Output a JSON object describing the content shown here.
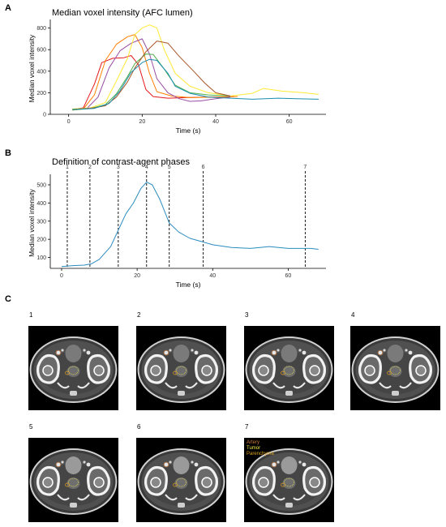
{
  "panels": {
    "a": {
      "letter": "A"
    },
    "b": {
      "letter": "B"
    },
    "c": {
      "letter": "C"
    }
  },
  "chart_data": [
    {
      "type": "line",
      "title": "Median voxel intensity (AFC lumen)",
      "xlabel": "Time (s)",
      "ylabel": "Median voxel intensity",
      "xlim": [
        -5,
        70
      ],
      "ylim": [
        0,
        850
      ],
      "xticks": [
        0,
        20,
        40,
        60
      ],
      "yticks": [
        0,
        200,
        400,
        600,
        800
      ],
      "grid": false,
      "legend": "none",
      "series": [
        {
          "color": "#e41a1c",
          "points": [
            [
              1,
              45
            ],
            [
              4,
              60
            ],
            [
              7,
              280
            ],
            [
              9,
              480
            ],
            [
              12,
              520
            ],
            [
              15,
              525
            ],
            [
              17,
              545
            ],
            [
              19,
              460
            ],
            [
              21,
              230
            ],
            [
              23,
              165
            ],
            [
              27,
              150
            ],
            [
              32,
              155
            ],
            [
              38,
              160
            ],
            [
              45,
              165
            ]
          ]
        },
        {
          "color": "#ff7f00",
          "points": [
            [
              1,
              40
            ],
            [
              4,
              50
            ],
            [
              7,
              180
            ],
            [
              10,
              500
            ],
            [
              13,
              650
            ],
            [
              16,
              720
            ],
            [
              18,
              740
            ],
            [
              20,
              620
            ],
            [
              22,
              380
            ],
            [
              24,
              210
            ],
            [
              28,
              170
            ],
            [
              33,
              155
            ],
            [
              40,
              160
            ],
            [
              46,
              165
            ]
          ]
        },
        {
          "color": "#984ea3",
          "points": [
            [
              1,
              45
            ],
            [
              5,
              55
            ],
            [
              8,
              160
            ],
            [
              11,
              430
            ],
            [
              14,
              590
            ],
            [
              17,
              660
            ],
            [
              20,
              700
            ],
            [
              22,
              560
            ],
            [
              24,
              330
            ],
            [
              27,
              200
            ],
            [
              30,
              145
            ],
            [
              33,
              120
            ],
            [
              36,
              125
            ],
            [
              40,
              145
            ],
            [
              44,
              160
            ]
          ]
        },
        {
          "color": "#ffea33",
          "points": [
            [
              1,
              50
            ],
            [
              6,
              60
            ],
            [
              10,
              110
            ],
            [
              13,
              310
            ],
            [
              16,
              520
            ],
            [
              18,
              740
            ],
            [
              20,
              800
            ],
            [
              22,
              830
            ],
            [
              24,
              800
            ],
            [
              26,
              600
            ],
            [
              29,
              380
            ],
            [
              33,
              260
            ],
            [
              38,
              200
            ],
            [
              44,
              170
            ],
            [
              50,
              195
            ],
            [
              53,
              240
            ],
            [
              58,
              215
            ],
            [
              64,
              200
            ],
            [
              68,
              185
            ]
          ]
        },
        {
          "color": "#4daf4a",
          "points": [
            [
              1,
              40
            ],
            [
              6,
              55
            ],
            [
              10,
              90
            ],
            [
              13,
              190
            ],
            [
              16,
              350
            ],
            [
              18,
              470
            ],
            [
              21,
              560
            ],
            [
              23,
              555
            ],
            [
              26,
              420
            ],
            [
              29,
              270
            ],
            [
              33,
              200
            ],
            [
              38,
              180
            ],
            [
              44,
              170
            ]
          ]
        },
        {
          "color": "#a65628",
          "points": [
            [
              1,
              45
            ],
            [
              7,
              60
            ],
            [
              10,
              80
            ],
            [
              13,
              160
            ],
            [
              16,
              300
            ],
            [
              18,
              430
            ],
            [
              21,
              580
            ],
            [
              24,
              680
            ],
            [
              27,
              660
            ],
            [
              30,
              540
            ],
            [
              34,
              400
            ],
            [
              37,
              290
            ],
            [
              40,
              200
            ],
            [
              44,
              170
            ]
          ]
        },
        {
          "color": "#1b8eb0",
          "points": [
            [
              1,
              45
            ],
            [
              7,
              55
            ],
            [
              11,
              100
            ],
            [
              14,
              220
            ],
            [
              17,
              390
            ],
            [
              20,
              480
            ],
            [
              22,
              510
            ],
            [
              24,
              500
            ],
            [
              27,
              380
            ],
            [
              29,
              260
            ],
            [
              33,
              195
            ],
            [
              38,
              160
            ],
            [
              44,
              150
            ],
            [
              50,
              140
            ],
            [
              57,
              150
            ],
            [
              62,
              145
            ],
            [
              68,
              140
            ]
          ]
        }
      ]
    },
    {
      "type": "line",
      "title": "Definition of contrast-agent phases",
      "xlabel": "Time (s)",
      "ylabel": "Median voxel intensity",
      "xlim": [
        -3,
        70
      ],
      "ylim": [
        40,
        540
      ],
      "xticks": [
        0,
        20,
        40,
        60
      ],
      "yticks": [
        100,
        200,
        300,
        400,
        500
      ],
      "grid": false,
      "legend": "none",
      "phases": [
        {
          "label": "1",
          "x": 1.5
        },
        {
          "label": "2",
          "x": 7.5
        },
        {
          "label": "3",
          "x": 15
        },
        {
          "label": "4",
          "x": 22.5
        },
        {
          "label": "5",
          "x": 28.5
        },
        {
          "label": "6",
          "x": 37.5
        },
        {
          "label": "7",
          "x": 64.5
        }
      ],
      "series": [
        {
          "color": "#2b8cbe",
          "points": [
            [
              0,
              50
            ],
            [
              3,
              55
            ],
            [
              6,
              58
            ],
            [
              8,
              66
            ],
            [
              10,
              90
            ],
            [
              13,
              160
            ],
            [
              15,
              250
            ],
            [
              17,
              340
            ],
            [
              19,
              400
            ],
            [
              21,
              480
            ],
            [
              22.5,
              515
            ],
            [
              24,
              500
            ],
            [
              26,
              420
            ],
            [
              28.5,
              290
            ],
            [
              31,
              240
            ],
            [
              34,
              205
            ],
            [
              37.5,
              185
            ],
            [
              40,
              170
            ],
            [
              45,
              155
            ],
            [
              50,
              150
            ],
            [
              55,
              160
            ],
            [
              60,
              150
            ],
            [
              66,
              150
            ],
            [
              68,
              145
            ]
          ]
        }
      ]
    }
  ],
  "ct_panels": [
    {
      "label": "1"
    },
    {
      "label": "2"
    },
    {
      "label": "3"
    },
    {
      "label": "4"
    },
    {
      "label": "5"
    },
    {
      "label": "6"
    },
    {
      "label": "7"
    }
  ],
  "roi_legend": {
    "items": [
      {
        "label": "Artery",
        "color": "#cf7a3a"
      },
      {
        "label": "Tumor",
        "color": "#f2e84a"
      },
      {
        "label": "Parenchyma",
        "color": "#e0a020"
      }
    ]
  }
}
